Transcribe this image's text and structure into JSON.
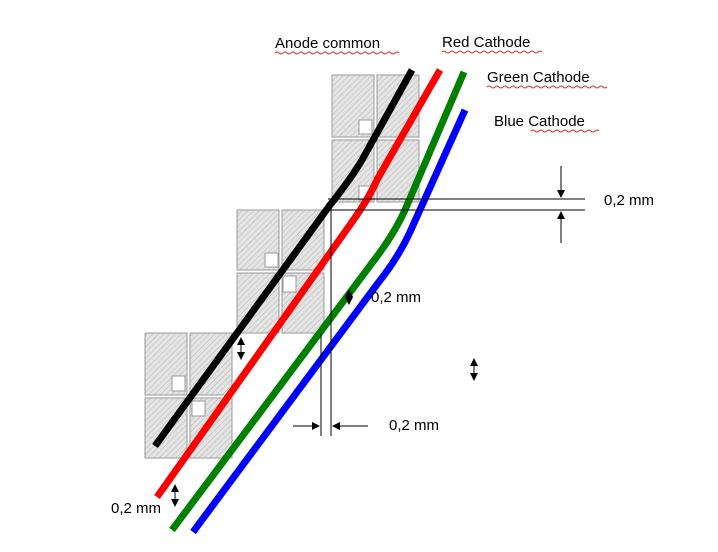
{
  "labels": {
    "anode": "Anode common",
    "red": "Red Cathode",
    "green": "Green Cathode",
    "blue": "Blue Cathode"
  },
  "dimensions": {
    "top_right": "0,2 mm",
    "middle": "0,2 mm",
    "bottom_center": "0,2 mm",
    "bottom_left": "0,2 mm"
  },
  "colors": {
    "anode": "#000000",
    "red": "#ff0000",
    "green": "#008000",
    "blue": "#0000ff",
    "cells": "#d9d9d9"
  }
}
